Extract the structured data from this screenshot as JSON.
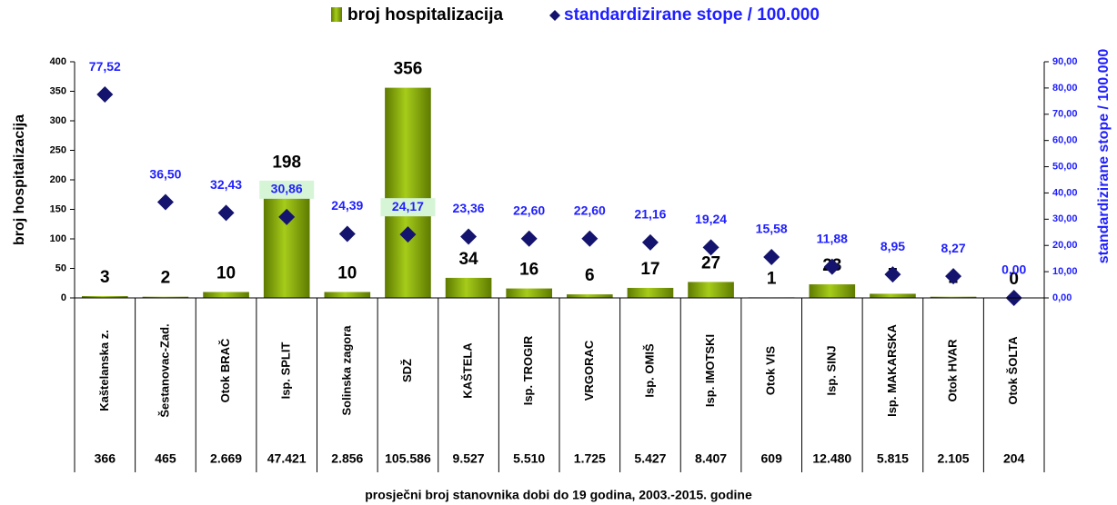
{
  "chart_data": {
    "type": "bar",
    "categories": [
      "Kaštelanska z.",
      "Šestanovac-Zad.",
      "Otok BRAČ",
      "Isp. SPLIT",
      "Solinska zagora",
      "SDŽ",
      "KAŠTELA",
      "Isp. TROGIR",
      "VRGORAC",
      "Isp. OMIŠ",
      "Isp. IMOTSKI",
      "Otok VIS",
      "Isp. SINJ",
      "Isp. MAKARSKA",
      "Otok HVAR",
      "Otok ŠOLTA"
    ],
    "series": [
      {
        "name": "broj hospitalizacija",
        "color": "#7f9f00",
        "values": [
          3,
          2,
          10,
          198,
          10,
          356,
          34,
          16,
          6,
          17,
          27,
          1,
          23,
          7,
          2,
          0
        ]
      },
      {
        "name": "standardizirane stope / 100.000",
        "color": "#14146e",
        "type": "scatter",
        "axis": "y2",
        "values": [
          77.52,
          36.5,
          32.43,
          30.86,
          24.39,
          24.17,
          23.36,
          22.6,
          22.6,
          21.16,
          19.24,
          15.58,
          11.88,
          8.95,
          8.27,
          0
        ],
        "value_labels": [
          "77,52",
          "36,50",
          "32,43",
          "30,86",
          "24,39",
          "24,17",
          "23,36",
          "22,60",
          "22,60",
          "21,16",
          "19,24",
          "15,58",
          "11,88",
          "8,95",
          "8,27",
          "0,00"
        ]
      }
    ],
    "table_values": [
      "366",
      "465",
      "2.669",
      "47.421",
      "2.856",
      "105.586",
      "9.527",
      "5.510",
      "1.725",
      "5.427",
      "8.407",
      "609",
      "12.480",
      "5.815",
      "2.105",
      "204"
    ],
    "ylabel": "broj hospitalizacija",
    "y2label": "standardizirane stope / 100.000",
    "xlabel": "prosječni broj stanovnika dobi do 19 godina, 2003.-2015. godine",
    "ylim": [
      0,
      400
    ],
    "yticks": [
      0,
      50,
      100,
      150,
      200,
      250,
      300,
      350,
      400
    ],
    "y2lim": [
      0,
      90
    ],
    "y2ticks": [
      {
        "value": 0,
        "label": "0,00"
      },
      {
        "value": 10,
        "label": "10,00"
      },
      {
        "value": 20,
        "label": "20,00"
      },
      {
        "value": 30,
        "label": "30,00"
      },
      {
        "value": 40,
        "label": "40,00"
      },
      {
        "value": 50,
        "label": "50,00"
      },
      {
        "value": 60,
        "label": "60,00"
      },
      {
        "value": 70,
        "label": "70,00"
      },
      {
        "value": 80,
        "label": "80,00"
      },
      {
        "value": 90,
        "label": "90,00"
      }
    ],
    "y2_color": "#1f1fff"
  }
}
